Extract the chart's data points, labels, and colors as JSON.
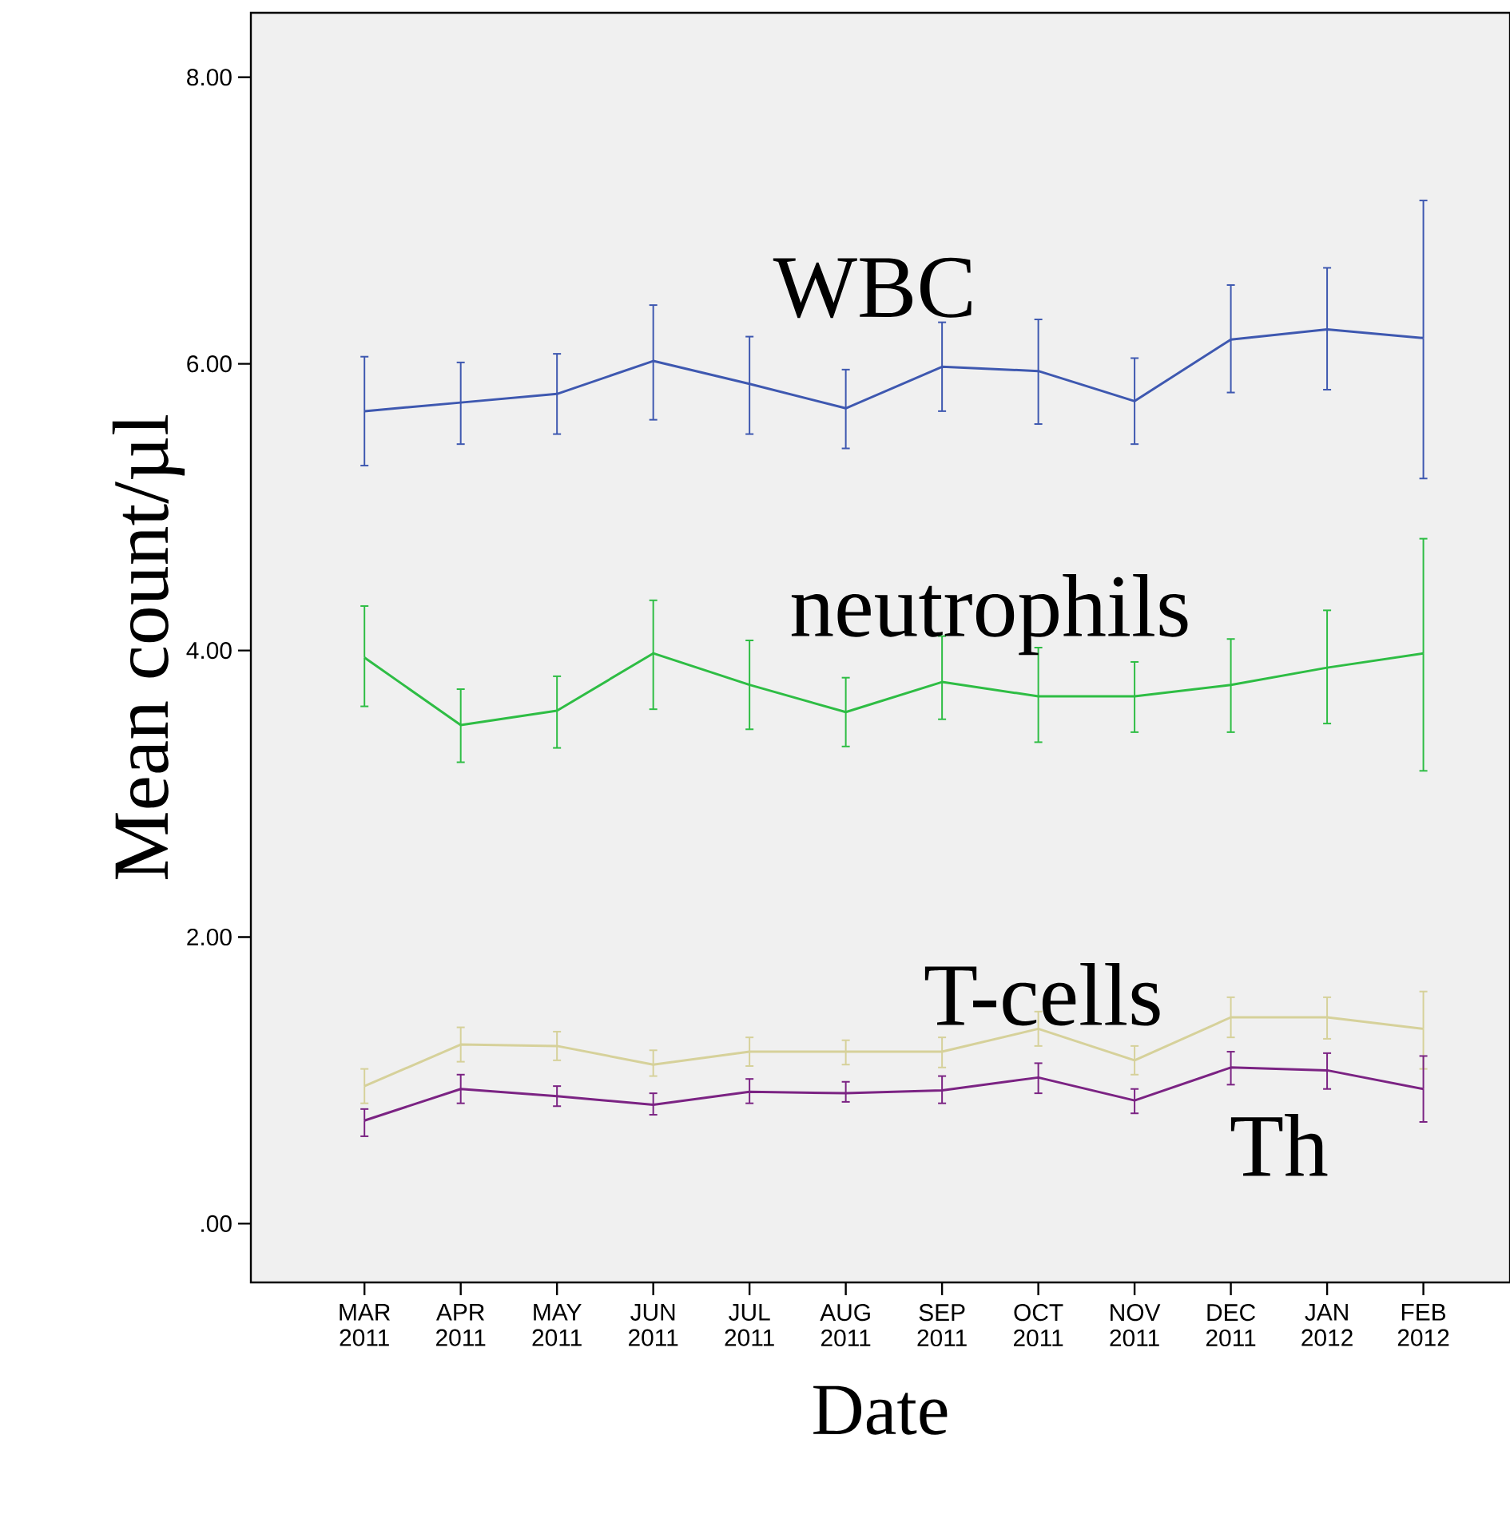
{
  "chart_data": {
    "type": "line",
    "xlabel": "Date",
    "ylabel": "Mean count/µl",
    "categories": [
      "MAR 2011",
      "APR 2011",
      "MAY 2011",
      "JUN 2011",
      "JUL 2011",
      "AUG 2011",
      "SEP 2011",
      "OCT 2011",
      "NOV 2011",
      "DEC 2011",
      "JAN 2012",
      "FEB 2012"
    ],
    "ylim": [
      -0.41,
      8.45
    ],
    "yticks": [
      {
        "value": 0,
        "label": ".00"
      },
      {
        "value": 2,
        "label": "2.00"
      },
      {
        "value": 4,
        "label": "4.00"
      },
      {
        "value": 6,
        "label": "6.00"
      },
      {
        "value": 8,
        "label": "8.00"
      }
    ],
    "series": [
      {
        "name": "WBC",
        "color": "#3e58b0",
        "values": [
          5.67,
          5.73,
          5.79,
          6.02,
          5.86,
          5.69,
          5.98,
          5.95,
          5.74,
          6.17,
          6.24,
          6.18
        ],
        "errors": [
          [
            5.29,
            6.05
          ],
          [
            5.44,
            6.01
          ],
          [
            5.51,
            6.07
          ],
          [
            5.61,
            6.41
          ],
          [
            5.51,
            6.19
          ],
          [
            5.41,
            5.96
          ],
          [
            5.67,
            6.29
          ],
          [
            5.58,
            6.31
          ],
          [
            5.44,
            6.04
          ],
          [
            5.8,
            6.55
          ],
          [
            5.82,
            6.67
          ],
          [
            5.2,
            7.14
          ]
        ]
      },
      {
        "name": "neutrophils",
        "color": "#2ebd44",
        "values": [
          3.95,
          3.48,
          3.58,
          3.98,
          3.76,
          3.57,
          3.78,
          3.68,
          3.68,
          3.76,
          3.88,
          3.98
        ],
        "errors": [
          [
            3.61,
            4.31
          ],
          [
            3.22,
            3.73
          ],
          [
            3.32,
            3.82
          ],
          [
            3.59,
            4.35
          ],
          [
            3.45,
            4.07
          ],
          [
            3.33,
            3.81
          ],
          [
            3.52,
            4.1
          ],
          [
            3.36,
            4.02
          ],
          [
            3.43,
            3.92
          ],
          [
            3.43,
            4.08
          ],
          [
            3.49,
            4.28
          ],
          [
            3.16,
            4.78
          ]
        ]
      },
      {
        "name": "T-cells",
        "color": "#d6d19a",
        "values": [
          0.96,
          1.25,
          1.24,
          1.11,
          1.2,
          1.2,
          1.2,
          1.36,
          1.14,
          1.44,
          1.44,
          1.36
        ],
        "errors": [
          [
            0.84,
            1.08
          ],
          [
            1.13,
            1.37
          ],
          [
            1.14,
            1.34
          ],
          [
            1.03,
            1.21
          ],
          [
            1.1,
            1.3
          ],
          [
            1.11,
            1.28
          ],
          [
            1.09,
            1.3
          ],
          [
            1.24,
            1.48
          ],
          [
            1.04,
            1.24
          ],
          [
            1.3,
            1.58
          ],
          [
            1.29,
            1.58
          ],
          [
            1.08,
            1.62
          ]
        ]
      },
      {
        "name": "Th",
        "color": "#7b2383",
        "values": [
          0.72,
          0.94,
          0.89,
          0.83,
          0.92,
          0.91,
          0.93,
          1.02,
          0.86,
          1.09,
          1.07,
          0.94
        ],
        "errors": [
          [
            0.61,
            0.8
          ],
          [
            0.84,
            1.04
          ],
          [
            0.82,
            0.96
          ],
          [
            0.76,
            0.91
          ],
          [
            0.84,
            1.01
          ],
          [
            0.85,
            0.99
          ],
          [
            0.84,
            1.03
          ],
          [
            0.91,
            1.12
          ],
          [
            0.77,
            0.94
          ],
          [
            0.97,
            1.2
          ],
          [
            0.94,
            1.19
          ],
          [
            0.71,
            1.17
          ]
        ]
      }
    ]
  }
}
